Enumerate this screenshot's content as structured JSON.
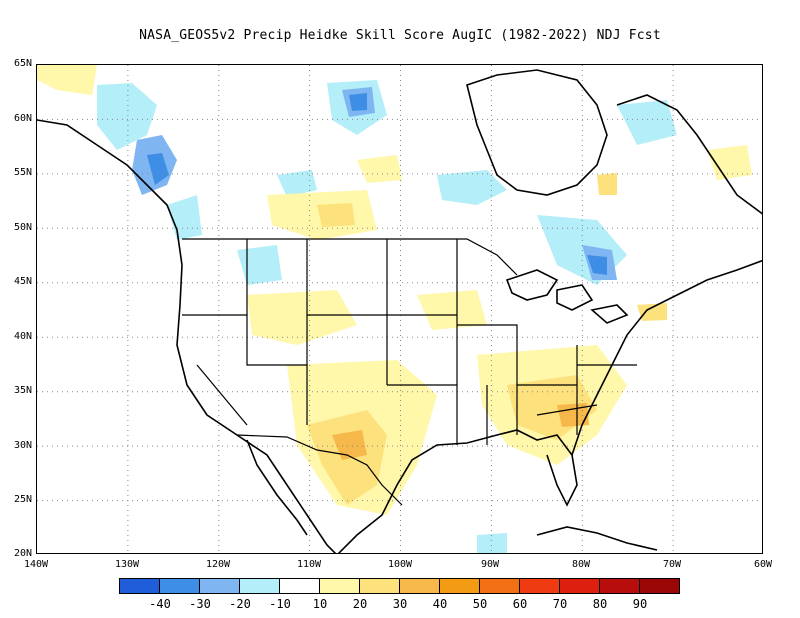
{
  "title": "NASA_GEOS5v2 Precip Heidke Skill Score AugIC (1982-2022) NDJ Fcst",
  "lat_labels": [
    "65N",
    "60N",
    "55N",
    "50N",
    "45N",
    "40N",
    "35N",
    "30N",
    "25N",
    "20N"
  ],
  "lon_labels": [
    "140W",
    "130W",
    "120W",
    "110W",
    "100W",
    "90W",
    "80W",
    "70W",
    "60W"
  ],
  "colorbar": {
    "colors": [
      "#1f5ed8",
      "#3e8ee6",
      "#7fb6f2",
      "#b3eef9",
      "#ffffff",
      "#fff7a9",
      "#fde17c",
      "#f6b84a",
      "#f39b12",
      "#f27013",
      "#ef3b12",
      "#dd1f10",
      "#b70d0d",
      "#9a0606"
    ],
    "labels": [
      "-40",
      "-30",
      "-20",
      "-10",
      "10",
      "20",
      "30",
      "40",
      "50",
      "60",
      "70",
      "80",
      "90"
    ]
  }
}
